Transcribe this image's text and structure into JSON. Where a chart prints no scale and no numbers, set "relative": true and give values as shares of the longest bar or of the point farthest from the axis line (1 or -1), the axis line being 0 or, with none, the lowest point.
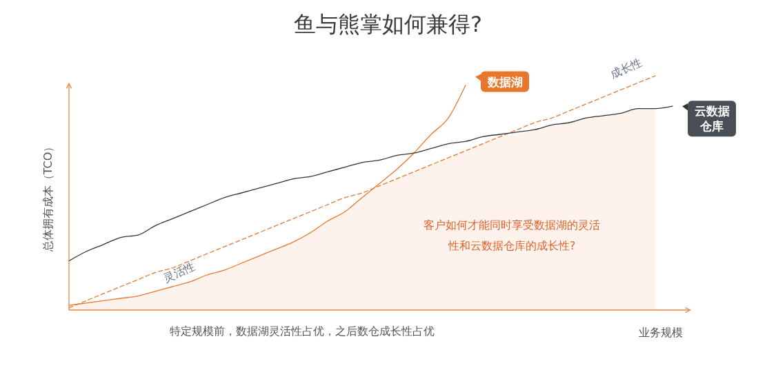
{
  "chart_data": {
    "type": "line",
    "title": "鱼与熊掌如何兼得?",
    "xlabel": "业务规模",
    "ylabel": "总体拥有成本（TCO）",
    "relative": true,
    "marker": "none",
    "legend": "top right",
    "categories": [
      null,
      null,
      null,
      null,
      null,
      null,
      null,
      null,
      null,
      null,
      null,
      null,
      null,
      null,
      null,
      null,
      null,
      null,
      null,
      null,
      null,
      null,
      null,
      null,
      null,
      null,
      null,
      null,
      null,
      null,
      null,
      null,
      null,
      null,
      null,
      null,
      null
    ],
    "series": [
      {
        "type": "area",
        "color": "#fdf3ec",
        "values": [
          0.02,
          0.03,
          0.04,
          0.05,
          0.06,
          0.08,
          0.1,
          0.12,
          0.15,
          0.17,
          0.2,
          0.23,
          0.26,
          0.29,
          0.33,
          0.38,
          0.42,
          0.48,
          0.53,
          0.56,
          0.59,
          0.62,
          0.65,
          0.68,
          0.71,
          0.74,
          0.75,
          0.77,
          0.79,
          0.8,
          0.82,
          0.83,
          0.84,
          0.86,
          0.86,
          null,
          null
        ]
      },
      {
        "name": "数据湖",
        "color": "#e8772e",
        "line_style": "solid",
        "values": [
          0.02,
          0.03,
          0.04,
          0.05,
          0.06,
          0.08,
          0.1,
          0.12,
          0.15,
          0.17,
          0.2,
          0.23,
          0.26,
          0.29,
          0.33,
          0.38,
          0.42,
          0.48,
          0.54,
          0.6,
          0.67,
          0.75,
          0.82,
          0.96,
          null,
          null,
          null,
          null,
          null,
          null,
          null,
          null,
          null,
          null,
          null,
          null,
          null
        ]
      },
      {
        "name": "成长性",
        "color": "#e8772e",
        "line_style": "dashed",
        "values": [
          0.01,
          0.04,
          0.07,
          0.1,
          0.13,
          0.16,
          0.18,
          0.21,
          0.24,
          0.27,
          0.3,
          0.33,
          0.36,
          0.39,
          0.42,
          0.45,
          0.48,
          0.5,
          0.53,
          0.56,
          0.59,
          0.62,
          0.65,
          0.68,
          0.71,
          0.74,
          0.77,
          0.8,
          0.82,
          0.85,
          0.88,
          0.91,
          0.94,
          0.97,
          1.0,
          null,
          null
        ]
      },
      {
        "name": "云数据仓库",
        "color": "#333333",
        "line_style": "solid",
        "values": [
          0.21,
          0.25,
          0.28,
          0.31,
          0.32,
          0.36,
          0.39,
          0.42,
          0.45,
          0.48,
          0.5,
          0.52,
          0.54,
          0.56,
          0.57,
          0.59,
          0.61,
          0.63,
          0.64,
          0.66,
          0.67,
          0.69,
          0.71,
          0.72,
          0.74,
          0.75,
          0.76,
          0.77,
          0.79,
          0.8,
          0.82,
          0.83,
          0.84,
          0.86,
          0.86,
          0.87,
          null
        ]
      }
    ],
    "annotations": [
      "灵活性",
      "客户如何才能同时享受数据湖的灵活性和云数据仓库的成长性?",
      "特定规模前，数据湖灵活性占优，之后数仓成长性占优"
    ]
  }
}
